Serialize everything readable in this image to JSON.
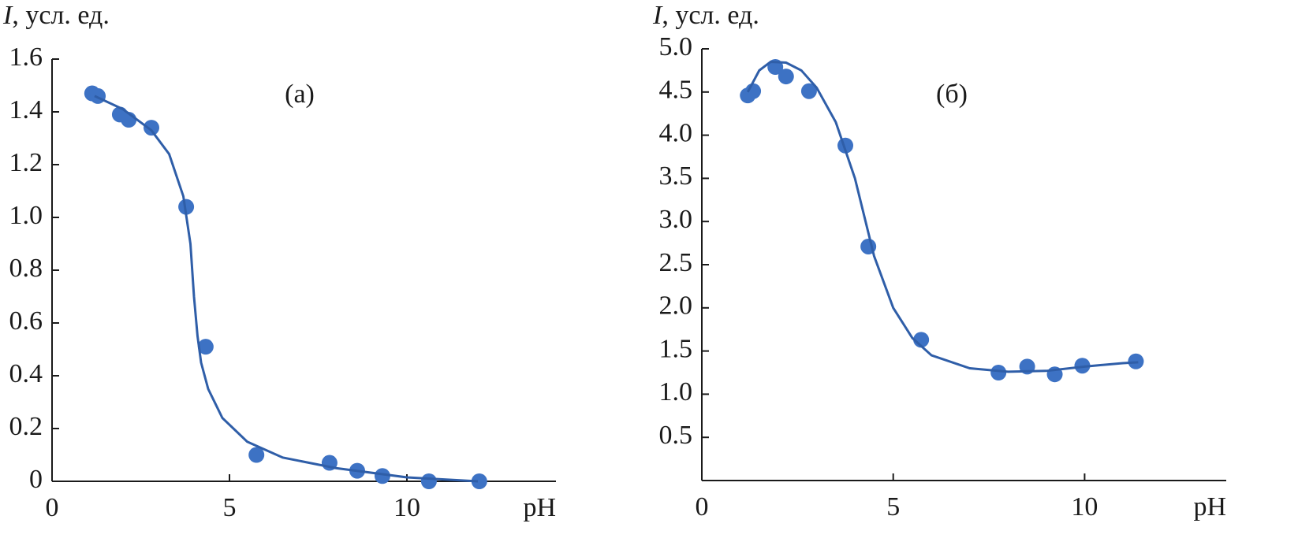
{
  "chart_data": [
    {
      "type": "scatter",
      "ylabel_symbol": "I",
      "ylabel": ", усл. ед.",
      "xlabel": "pH",
      "annotation": "(а)",
      "xlim": [
        0,
        14.2
      ],
      "ylim": [
        0,
        1.6
      ],
      "xticks": [
        0,
        5,
        10
      ],
      "yticks": [
        0,
        0.2,
        0.4,
        0.6,
        0.8,
        {
          "value": 1,
          "label": "1.0"
        },
        1.2,
        1.4,
        1.6
      ],
      "series": [
        {
          "color": "#3d72c4",
          "marker": "circle",
          "x": [
            1.13,
            1.29,
            1.91,
            2.16,
            2.8,
            3.78,
            4.33,
            5.76,
            7.82,
            8.6,
            9.31,
            10.62,
            12.04
          ],
          "values": [
            1.47,
            1.46,
            1.39,
            1.37,
            1.34,
            1.04,
            0.51,
            0.1,
            0.07,
            0.04,
            0.02,
            0,
            0
          ]
        },
        {
          "color": "#2f5ea8",
          "line": true,
          "x": [
            1.2,
            2,
            2.8,
            3.3,
            3.7,
            3.9,
            4.0,
            4.1,
            4.2,
            4.4,
            4.8,
            5.5,
            6.5,
            8,
            10,
            12
          ],
          "values": [
            1.46,
            1.41,
            1.33,
            1.24,
            1.08,
            0.9,
            0.7,
            0.55,
            0.45,
            0.35,
            0.24,
            0.15,
            0.09,
            0.05,
            0.015,
            0
          ]
        }
      ]
    },
    {
      "type": "scatter",
      "ylabel_symbol": "I",
      "ylabel": ", усл. ед.",
      "xlabel": "pH",
      "annotation": "(б)",
      "xlim": [
        0,
        13.7
      ],
      "ylim": [
        0,
        5
      ],
      "xticks": [
        0,
        5,
        10
      ],
      "yticks": [
        0.5,
        {
          "value": 1,
          "label": "1.0"
        },
        1.5,
        {
          "value": 2,
          "label": "2.0"
        },
        2.5,
        {
          "value": 3,
          "label": "3.0"
        },
        3.5,
        {
          "value": 4,
          "label": "4.0"
        },
        4.5,
        {
          "value": 5,
          "label": "5.0"
        }
      ],
      "series": [
        {
          "color": "#3d72c4",
          "marker": "circle",
          "x": [
            1.2,
            1.34,
            1.92,
            2.2,
            2.8,
            3.75,
            4.35,
            5.73,
            7.75,
            8.5,
            9.22,
            9.94,
            11.34
          ],
          "values": [
            4.46,
            4.51,
            4.79,
            4.68,
            4.51,
            3.88,
            2.71,
            1.63,
            1.25,
            1.32,
            1.23,
            1.33,
            1.38
          ]
        },
        {
          "color": "#2f5ea8",
          "line": true,
          "x": [
            1.2,
            1.5,
            1.8,
            2.2,
            2.6,
            3.0,
            3.5,
            4.0,
            4.5,
            5.0,
            5.5,
            6,
            7,
            8,
            9,
            10,
            11,
            11.4
          ],
          "values": [
            4.5,
            4.75,
            4.85,
            4.84,
            4.75,
            4.55,
            4.15,
            3.5,
            2.6,
            2.0,
            1.65,
            1.45,
            1.3,
            1.26,
            1.27,
            1.32,
            1.36,
            1.37
          ]
        }
      ]
    }
  ]
}
